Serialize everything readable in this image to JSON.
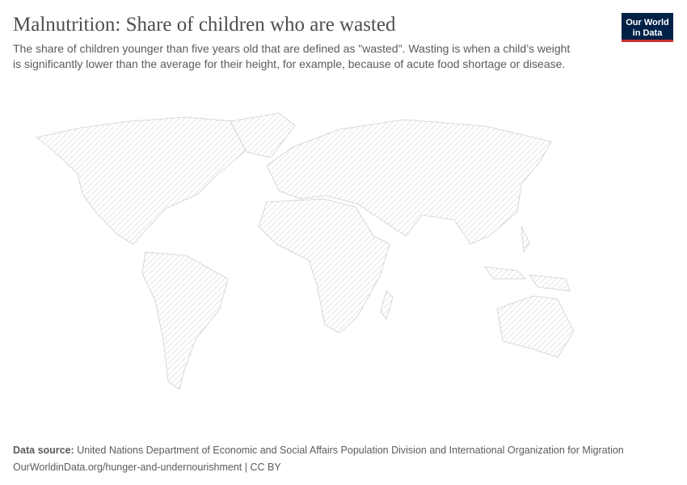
{
  "header": {
    "title": "Malnutrition: Share of children who are wasted",
    "subtitle_line1": "The share of children younger than five years old that are defined as \"wasted\". Wasting is when a child’s weight",
    "subtitle_line2": "is significantly lower than the average for their height, for example, because of acute food shortage or disease.",
    "logo_line1": "Our World",
    "logo_line2": "in Data"
  },
  "footer": {
    "source_label": "Data source:",
    "source": "United Nations Department of Economic and Social Affairs Population Division and International Organization for Migration",
    "url": "OurWorldinData.org/hunger-and-undernourishment | CC BY"
  }
}
